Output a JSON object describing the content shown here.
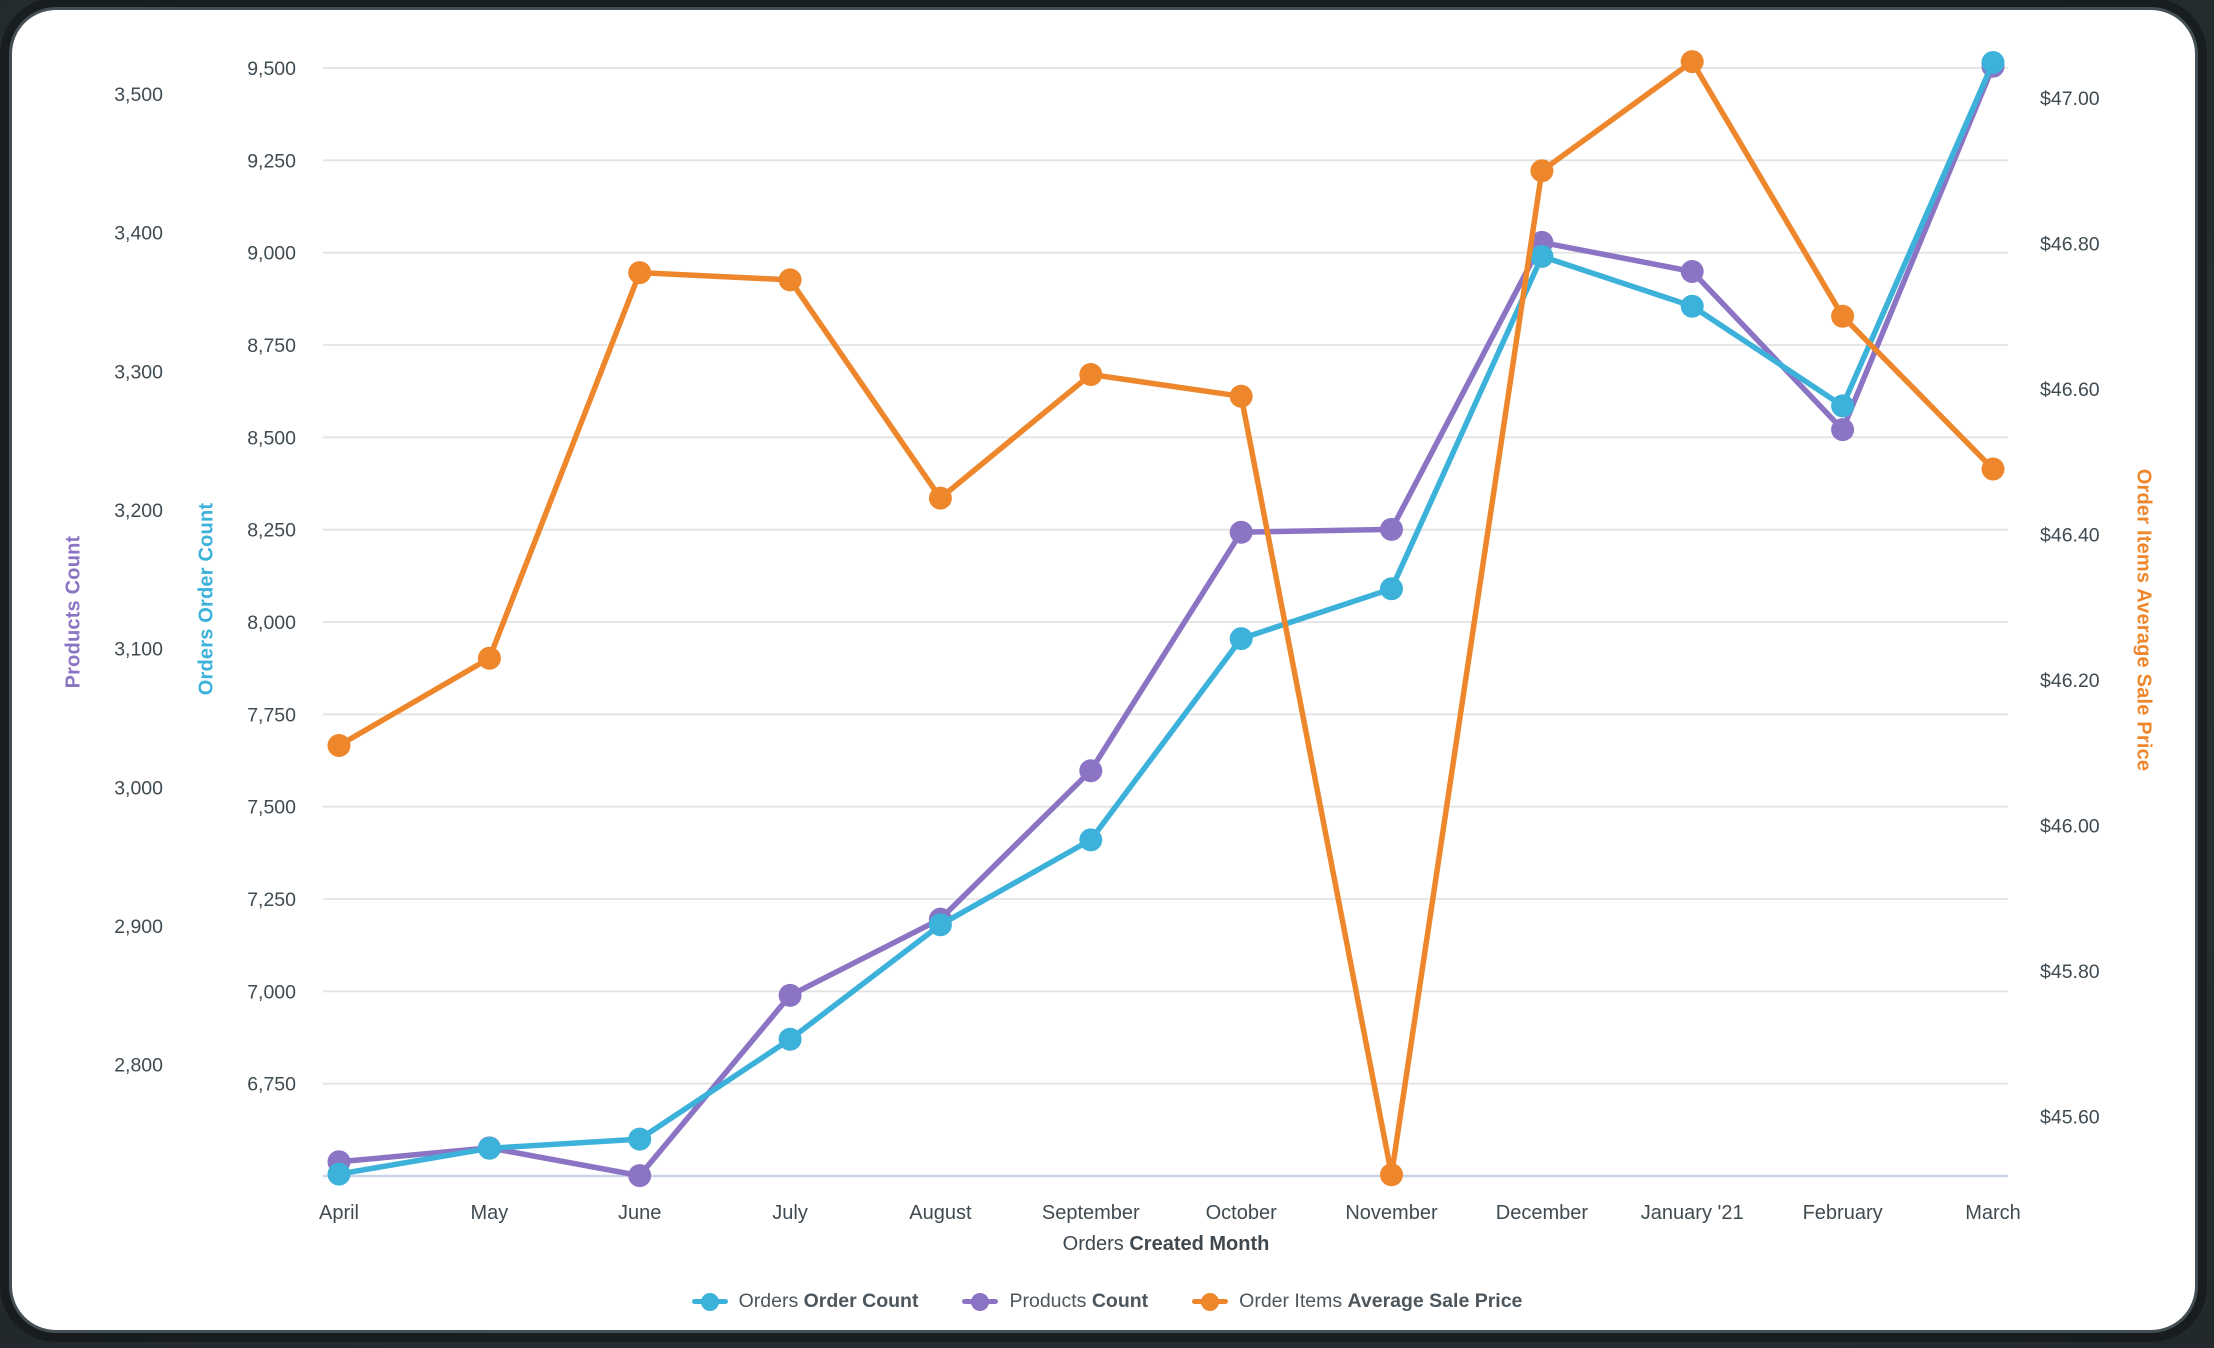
{
  "chart_data": {
    "type": "line",
    "x_axis": {
      "title_regular": "Orders",
      "title_bold": "Created Month",
      "categories": [
        "April",
        "May",
        "June",
        "July",
        "August",
        "September",
        "October",
        "November",
        "December",
        "January '21",
        "February",
        "March"
      ]
    },
    "y_axes": [
      {
        "id": "orders",
        "title": "Orders Order Count",
        "color": "#3CB2DA",
        "side": "left-inner",
        "tick_labels": [
          "6,750",
          "7,000",
          "7,250",
          "7,500",
          "7,750",
          "8,000",
          "8,250",
          "8,500",
          "8,750",
          "9,000",
          "9,250",
          "9,500"
        ],
        "tick_values": [
          6750,
          7000,
          7250,
          7500,
          7750,
          8000,
          8250,
          8500,
          8750,
          9000,
          9250,
          9500
        ]
      },
      {
        "id": "products",
        "title": "Products Count",
        "color": "#8C74C4",
        "side": "left-outer",
        "tick_labels": [
          "2,800",
          "2,900",
          "3,000",
          "3,100",
          "3,200",
          "3,300",
          "3,400",
          "3,500"
        ],
        "tick_values": [
          2800,
          2900,
          3000,
          3100,
          3200,
          3300,
          3400,
          3500
        ]
      },
      {
        "id": "price",
        "title": "Order Items Average Sale Price",
        "color": "#EE872C",
        "side": "right",
        "tick_labels": [
          "$45.60",
          "$45.80",
          "$46.00",
          "$46.20",
          "$46.40",
          "$46.60",
          "$46.80",
          "$47.00"
        ],
        "tick_values": [
          45.6,
          45.8,
          46.0,
          46.2,
          46.4,
          46.6,
          46.8,
          47.0
        ]
      }
    ],
    "series": [
      {
        "id": "orders",
        "label_regular": "Orders",
        "label_bold": "Order Count",
        "axis": "orders",
        "color": "#3CB2DA",
        "values": [
          6505,
          6575,
          6600,
          6870,
          7180,
          7410,
          7955,
          8090,
          8990,
          8855,
          8585,
          9515
        ]
      },
      {
        "id": "products",
        "label_regular": "Products",
        "label_bold": "Count",
        "axis": "products",
        "color": "#8C74C4",
        "values": [
          2730,
          2740,
          2720,
          2850,
          2905,
          3012,
          3184,
          3186,
          3393,
          3372,
          3258,
          3520
        ]
      },
      {
        "id": "price",
        "label_regular": "Order Items",
        "label_bold": "Average Sale Price",
        "axis": "price",
        "color": "#EE872C",
        "values": [
          46.11,
          46.23,
          46.76,
          46.75,
          46.45,
          46.62,
          46.59,
          45.52,
          46.9,
          47.05,
          46.7,
          46.49
        ]
      }
    ],
    "grid": {
      "gridline_color": "#E3E3E3",
      "baseline_color": "#C9D5E6",
      "tick_text_color": "#3F4A51",
      "legend_position": "bottom-center",
      "gridlines_follow_axis": "orders"
    }
  }
}
